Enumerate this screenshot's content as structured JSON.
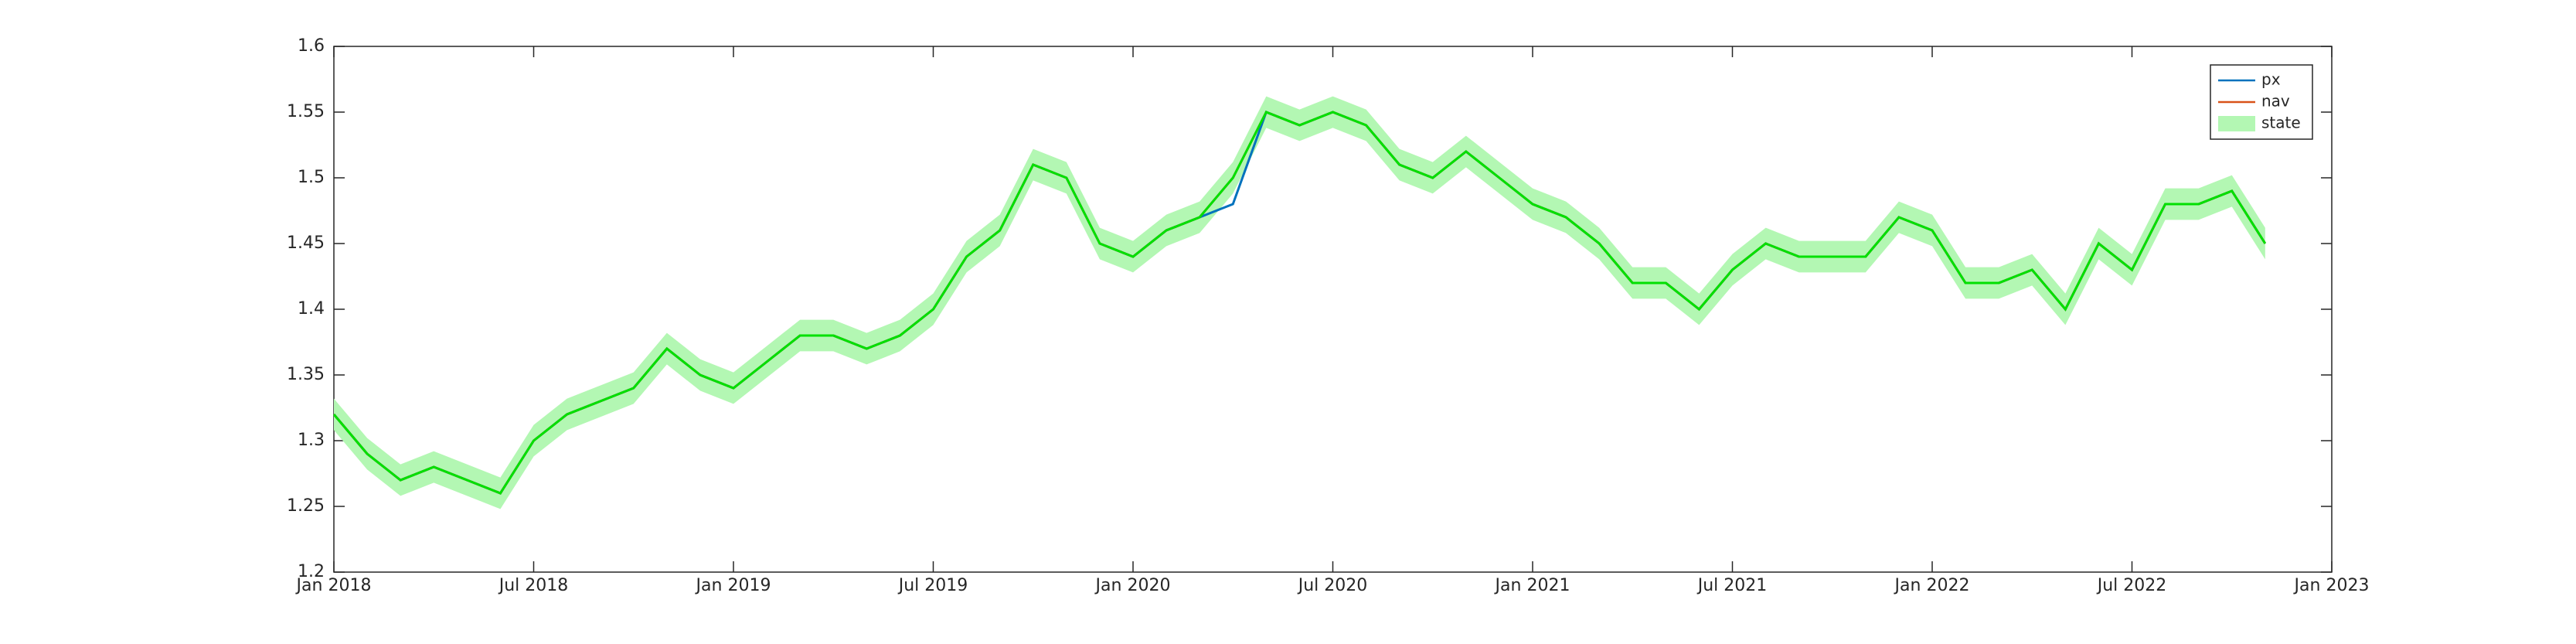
{
  "chart_data": {
    "type": "line",
    "x": [
      "2018-01",
      "2018-02",
      "2018-03",
      "2018-04",
      "2018-05",
      "2018-06",
      "2018-07",
      "2018-08",
      "2018-09",
      "2018-10",
      "2018-11",
      "2018-12",
      "2019-01",
      "2019-02",
      "2019-03",
      "2019-04",
      "2019-05",
      "2019-06",
      "2019-07",
      "2019-08",
      "2019-09",
      "2019-10",
      "2019-11",
      "2019-12",
      "2020-01",
      "2020-02",
      "2020-03",
      "2020-04",
      "2020-05",
      "2020-06",
      "2020-07",
      "2020-08",
      "2020-09",
      "2020-10",
      "2020-11",
      "2020-12",
      "2021-01",
      "2021-02",
      "2021-03",
      "2021-04",
      "2021-05",
      "2021-06",
      "2021-07",
      "2021-08",
      "2021-09",
      "2021-10",
      "2021-11",
      "2021-12",
      "2022-01",
      "2022-02",
      "2022-03",
      "2022-04",
      "2022-05",
      "2022-06",
      "2022-07",
      "2022-08",
      "2022-09",
      "2022-10",
      "2022-11"
    ],
    "series": [
      {
        "name": "px",
        "color": "#0072bd",
        "values": [
          1.32,
          1.29,
          1.27,
          1.28,
          1.27,
          1.26,
          1.3,
          1.32,
          1.33,
          1.34,
          1.37,
          1.35,
          1.34,
          1.36,
          1.38,
          1.38,
          1.37,
          1.38,
          1.4,
          1.44,
          1.46,
          1.51,
          1.5,
          1.45,
          1.44,
          1.46,
          1.47,
          1.48,
          1.55,
          1.54,
          1.55,
          1.54,
          1.51,
          1.5,
          1.52,
          1.5,
          1.48,
          1.47,
          1.45,
          1.42,
          1.42,
          1.4,
          1.43,
          1.45,
          1.44,
          1.44,
          1.44,
          1.47,
          1.46,
          1.42,
          1.42,
          1.43,
          1.4,
          1.45,
          1.43,
          1.48,
          1.48,
          1.49,
          1.45
        ]
      },
      {
        "name": "nav",
        "color": "#d95319",
        "values": [
          1.32,
          1.29,
          1.27,
          1.28,
          1.27,
          1.26,
          1.3,
          1.32,
          1.33,
          1.34,
          1.37,
          1.35,
          1.34,
          1.36,
          1.38,
          1.38,
          1.37,
          1.38,
          1.4,
          1.44,
          1.46,
          1.51,
          1.5,
          1.45,
          1.44,
          1.46,
          1.47,
          1.5,
          1.55,
          1.54,
          1.55,
          1.54,
          1.51,
          1.5,
          1.52,
          1.5,
          1.48,
          1.47,
          1.45,
          1.42,
          1.42,
          1.4,
          1.43,
          1.45,
          1.44,
          1.44,
          1.44,
          1.47,
          1.46,
          1.42,
          1.42,
          1.43,
          1.4,
          1.45,
          1.43,
          1.48,
          1.48,
          1.49,
          1.45
        ]
      },
      {
        "name": "state",
        "color": "#00e000",
        "band_color": "#b3f7b3",
        "band": 0.012,
        "values": [
          1.32,
          1.29,
          1.27,
          1.28,
          1.27,
          1.26,
          1.3,
          1.32,
          1.33,
          1.34,
          1.37,
          1.35,
          1.34,
          1.36,
          1.38,
          1.38,
          1.37,
          1.38,
          1.4,
          1.44,
          1.46,
          1.51,
          1.5,
          1.45,
          1.44,
          1.46,
          1.47,
          1.5,
          1.55,
          1.54,
          1.55,
          1.54,
          1.51,
          1.5,
          1.52,
          1.5,
          1.48,
          1.47,
          1.45,
          1.42,
          1.42,
          1.4,
          1.43,
          1.45,
          1.44,
          1.44,
          1.44,
          1.47,
          1.46,
          1.42,
          1.42,
          1.43,
          1.4,
          1.45,
          1.43,
          1.48,
          1.48,
          1.49,
          1.45
        ]
      }
    ],
    "xlim": [
      "2018-01",
      "2023-01"
    ],
    "xticks": [
      {
        "value": "2018-01",
        "label": "Jan 2018"
      },
      {
        "value": "2018-07",
        "label": "Jul 2018"
      },
      {
        "value": "2019-01",
        "label": "Jan 2019"
      },
      {
        "value": "2019-07",
        "label": "Jul 2019"
      },
      {
        "value": "2020-01",
        "label": "Jan 2020"
      },
      {
        "value": "2020-07",
        "label": "Jul 2020"
      },
      {
        "value": "2021-01",
        "label": "Jan 2021"
      },
      {
        "value": "2021-07",
        "label": "Jul 2021"
      },
      {
        "value": "2022-01",
        "label": "Jan 2022"
      },
      {
        "value": "2022-07",
        "label": "Jul 2022"
      },
      {
        "value": "2023-01",
        "label": "Jan 2023"
      }
    ],
    "ylim": [
      1.2,
      1.6
    ],
    "yticks": [
      1.2,
      1.25,
      1.3,
      1.35,
      1.4,
      1.45,
      1.5,
      1.55,
      1.6
    ],
    "legend": "top-right"
  }
}
